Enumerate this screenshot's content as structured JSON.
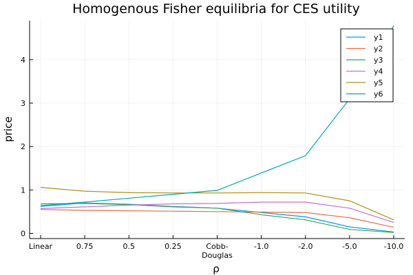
{
  "chart_data": {
    "type": "line",
    "title": "Homogenous Fisher equilibria for CES utility",
    "xlabel": "ρ",
    "ylabel": "price",
    "categories": [
      {
        "label": "Linear",
        "sub": ""
      },
      {
        "label": "0.75",
        "sub": ""
      },
      {
        "label": "0.5",
        "sub": ""
      },
      {
        "label": "0.25",
        "sub": ""
      },
      {
        "label": "Cobb-",
        "sub": "Douglas"
      },
      {
        "label": "-1.0",
        "sub": ""
      },
      {
        "label": "-2.0",
        "sub": ""
      },
      {
        "label": "-5.0",
        "sub": ""
      },
      {
        "label": "-10.0",
        "sub": ""
      }
    ],
    "yticks": [
      {
        "value": 0,
        "label": "0"
      },
      {
        "value": 1,
        "label": "1"
      },
      {
        "value": 2,
        "label": "2"
      },
      {
        "value": 3,
        "label": "3"
      },
      {
        "value": 4,
        "label": "4"
      }
    ],
    "ylim": [
      -0.12,
      4.9
    ],
    "grid": true,
    "legend_position": "top-right",
    "series": [
      {
        "name": "y1",
        "color": "#009AFA",
        "values": [
          0.62,
          0.7,
          0.67,
          0.62,
          0.58,
          0.48,
          0.38,
          0.15,
          0.03
        ]
      },
      {
        "name": "y2",
        "color": "#E36F47",
        "values": [
          0.55,
          0.53,
          0.52,
          0.51,
          0.5,
          0.49,
          0.48,
          0.36,
          0.14
        ]
      },
      {
        "name": "y3",
        "color": "#3EA44E",
        "values": [
          0.68,
          0.69,
          0.66,
          0.61,
          0.58,
          0.43,
          0.31,
          0.09,
          0.02
        ]
      },
      {
        "name": "y4",
        "color": "#C271D2",
        "values": [
          0.57,
          0.61,
          0.65,
          0.68,
          0.69,
          0.72,
          0.72,
          0.58,
          0.25
        ]
      },
      {
        "name": "y5",
        "color": "#AC8E18",
        "values": [
          1.06,
          0.97,
          0.94,
          0.93,
          0.93,
          0.94,
          0.93,
          0.75,
          0.31
        ]
      },
      {
        "name": "y6",
        "color": "#00A9AD",
        "values": [
          0.64,
          0.72,
          0.81,
          0.9,
          0.99,
          1.39,
          1.79,
          3.1,
          4.78
        ]
      }
    ]
  }
}
